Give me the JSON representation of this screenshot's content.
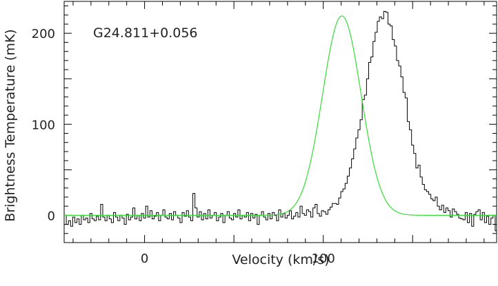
{
  "chart_data": {
    "type": "line",
    "annotation": "G24.811+0.056",
    "xlabel": "Velocity (km/s)",
    "ylabel": "Brightness Temperature (mK)",
    "xlim": [
      -45,
      197
    ],
    "ylim": [
      -30,
      235
    ],
    "x_major_ticks": [
      0,
      100
    ],
    "y_major_ticks": [
      0,
      100,
      200
    ],
    "x_tick_labels": [
      "0",
      "100"
    ],
    "y_tick_labels": [
      "0",
      "100",
      "200"
    ],
    "x_minor_step": 10,
    "y_minor_step": 10,
    "grid": false,
    "colors": {
      "spectrum": "#000000",
      "fit": "#33dd33",
      "axes": "#000000"
    },
    "series": [
      {
        "style": "histogram",
        "color": "#000000",
        "x_start": -45,
        "x_step": 1.2,
        "values": [
          0,
          -10,
          -6,
          -12,
          -2,
          -8,
          -4,
          -10,
          0,
          -5,
          -3,
          -8,
          2,
          -4,
          -6,
          -1,
          -5,
          12,
          -2,
          -6,
          0,
          -4,
          -8,
          3,
          -2,
          -6,
          0,
          -3,
          -10,
          1,
          -5,
          -2,
          8,
          -4,
          0,
          -6,
          2,
          -3,
          10,
          -2,
          5,
          -4,
          -1,
          3,
          -6,
          0,
          6,
          -2,
          -4,
          2,
          -5,
          4,
          0,
          -3,
          -8,
          3,
          -1,
          5,
          -2,
          -6,
          24,
          8,
          -2,
          4,
          -5,
          2,
          -4,
          6,
          -3,
          0,
          3,
          -6,
          -2,
          2,
          -8,
          0,
          4,
          -3,
          -5,
          2,
          -2,
          6,
          -4,
          0,
          -2,
          3,
          -6,
          2,
          -3,
          1,
          -10,
          0,
          4,
          -2,
          -5,
          2,
          -4,
          3,
          0,
          -6,
          6,
          -2,
          2,
          -3,
          0,
          5,
          -4,
          -1,
          3,
          -2,
          10,
          2,
          0,
          6,
          4,
          -2,
          8,
          12,
          2,
          -1,
          5,
          4,
          1,
          6,
          9,
          13,
          13,
          12,
          19,
          26,
          29,
          35,
          43,
          52,
          62,
          73,
          85,
          94,
          105,
          127,
          132,
          150,
          168,
          174,
          191,
          201,
          213,
          218,
          216,
          224,
          223,
          210,
          208,
          193,
          186,
          170,
          164,
          152,
          135,
          129,
          103,
          94,
          77,
          68,
          52,
          55,
          42,
          34,
          28,
          26,
          23,
          18,
          16,
          20,
          10,
          6,
          11,
          3,
          8,
          5,
          -2,
          7,
          4,
          1,
          -3,
          -4,
          -5,
          3,
          -8,
          2,
          -12,
          1,
          4,
          6,
          -5,
          3,
          -8,
          -1,
          -10,
          -3,
          0,
          -17,
          -3,
          7,
          -7,
          -3,
          -2,
          -5,
          -6,
          0,
          5,
          -11,
          4,
          -9,
          -2,
          -7,
          -4,
          -1,
          3,
          -8,
          -2
        ]
      },
      {
        "style": "line",
        "color": "#33dd33",
        "gaussian": {
          "amplitude": 219,
          "center": 110.4,
          "sigma": 10.8,
          "baseline": 0
        }
      }
    ]
  }
}
